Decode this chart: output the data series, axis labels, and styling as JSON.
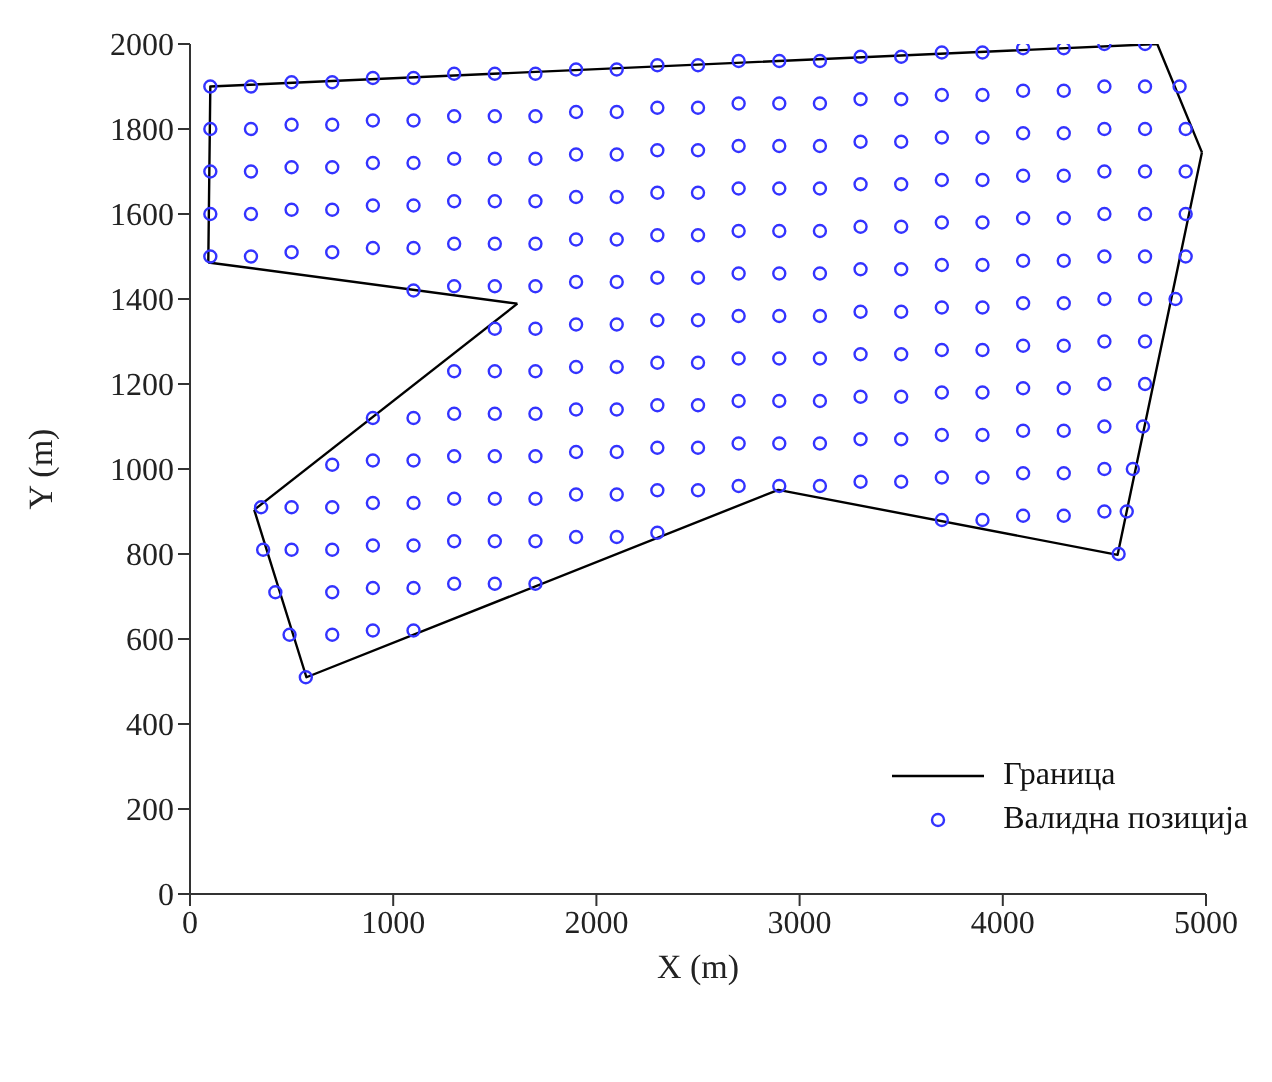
{
  "chart_data": {
    "type": "scatter",
    "xlabel": "X (m)",
    "ylabel": "Y (m)",
    "xlim": [
      0,
      5000
    ],
    "xticks": [
      0,
      1000,
      2000,
      3000,
      4000,
      5000
    ],
    "ylim": [
      0,
      2000
    ],
    "yticks": [
      0,
      200,
      400,
      600,
      800,
      1000,
      1200,
      1400,
      1600,
      1800,
      2000
    ],
    "grid": false,
    "legend": "bottom right",
    "series": [
      {
        "name": "Граница",
        "type": "line",
        "color": "#000000",
        "line_style": "solid",
        "marker": "none",
        "x": [
          90,
          100,
          4760,
          4980
        ],
        "values": [
          1486,
          1900,
          2000,
          1745
        ]
      },
      {
        "type": "line",
        "color": "#000000",
        "line_style": "solid",
        "marker": "none",
        "x": [
          4980,
          4565,
          2895,
          573,
          316
        ],
        "values": [
          1745,
          798,
          951,
          510,
          904
        ]
      },
      {
        "type": "line",
        "color": "#000000",
        "line_style": "solid",
        "marker": "none",
        "x": [
          316,
          1611
        ],
        "values": [
          904,
          1389
        ]
      },
      {
        "type": "line",
        "color": "#000000",
        "line_style": "solid",
        "marker": "none",
        "x": [
          1611,
          90
        ],
        "values": [
          1389,
          1486
        ]
      },
      {
        "name": "Валидна позиција",
        "color": "#3333ff",
        "marker": "circle",
        "x": [
          100,
          300,
          500,
          700,
          900,
          1100,
          1300,
          1500,
          1700,
          1900,
          2100,
          2300,
          2500,
          2700,
          2900,
          3100,
          3300,
          3500,
          3700,
          3900,
          4100,
          4300,
          4500,
          4700,
          100,
          300,
          500,
          700,
          900,
          1100,
          1300,
          1500,
          1700,
          1900,
          2100,
          2300,
          2500,
          2700,
          2900,
          3100,
          3300,
          3500,
          3700,
          3900,
          4100,
          4300,
          4500,
          4700,
          4870,
          100,
          300,
          500,
          700,
          900,
          1100,
          1300,
          1500,
          1700,
          1900,
          2100,
          2300,
          2500,
          2700,
          2900,
          3100,
          3300,
          3500,
          3700,
          3900,
          4100,
          4300,
          4500,
          4700,
          4900,
          100,
          300,
          500,
          700,
          900,
          1100,
          1300,
          1500,
          1700,
          1900,
          2100,
          2300,
          2500,
          2700,
          2900,
          3100,
          3300,
          3500,
          3700,
          3900,
          4100,
          4300,
          4500,
          4700,
          4900,
          100,
          300,
          500,
          700,
          900,
          1100,
          1300,
          1500,
          1700,
          1900,
          2100,
          2300,
          2500,
          2700,
          2900,
          3100,
          3300,
          3500,
          3700,
          3900,
          4100,
          4300,
          4500,
          4700,
          4900,
          1100,
          1300,
          1500,
          1700,
          1900,
          2100,
          2300,
          2500,
          2700,
          2900,
          3100,
          3300,
          3500,
          3700,
          3900,
          4100,
          4300,
          4500,
          4700,
          4900,
          1500,
          1700,
          1900,
          2100,
          2300,
          2500,
          2700,
          2900,
          3100,
          3300,
          3500,
          3700,
          3900,
          4100,
          4300,
          4500,
          4700,
          4850,
          1300,
          1500,
          1700,
          1900,
          2100,
          2300,
          2500,
          2700,
          2900,
          3100,
          3300,
          3500,
          3700,
          3900,
          4100,
          4300,
          4500,
          4700,
          900,
          1100,
          1300,
          1500,
          1700,
          1900,
          2100,
          2300,
          2500,
          2700,
          2900,
          3100,
          3300,
          3500,
          3700,
          3900,
          4100,
          4300,
          4500,
          4700,
          700,
          900,
          1100,
          1300,
          1500,
          1700,
          1900,
          2100,
          2300,
          2500,
          2700,
          2900,
          3100,
          3300,
          3500,
          3700,
          3900,
          4100,
          4300,
          4500,
          4690,
          350,
          500,
          700,
          900,
          1100,
          1300,
          1500,
          1700,
          1900,
          2100,
          2300,
          2500,
          2700,
          2900,
          3100,
          3300,
          3500,
          3700,
          3900,
          4100,
          4300,
          4500,
          4640,
          360,
          500,
          700,
          900,
          1100,
          1300,
          1500,
          1700,
          1900,
          2100,
          2300,
          3700,
          3900,
          4100,
          4300,
          4500,
          4610,
          420,
          700,
          900,
          1100,
          1300,
          1500,
          1700,
          490,
          700,
          900,
          1100,
          570,
          4570
        ],
        "values": [
          1900,
          1900,
          1910,
          1910,
          1920,
          1920,
          1930,
          1930,
          1930,
          1940,
          1940,
          1950,
          1950,
          1960,
          1960,
          1960,
          1970,
          1970,
          1980,
          1980,
          1990,
          1990,
          2000,
          2000,
          1800,
          1800,
          1810,
          1810,
          1820,
          1820,
          1830,
          1830,
          1830,
          1840,
          1840,
          1850,
          1850,
          1860,
          1860,
          1860,
          1870,
          1870,
          1880,
          1880,
          1890,
          1890,
          1900,
          1900,
          1900,
          1700,
          1700,
          1710,
          1710,
          1720,
          1720,
          1730,
          1730,
          1730,
          1740,
          1740,
          1750,
          1750,
          1760,
          1760,
          1760,
          1770,
          1770,
          1780,
          1780,
          1790,
          1790,
          1800,
          1800,
          1800,
          1600,
          1600,
          1610,
          1610,
          1620,
          1620,
          1630,
          1630,
          1630,
          1640,
          1640,
          1650,
          1650,
          1660,
          1660,
          1660,
          1670,
          1670,
          1680,
          1680,
          1690,
          1690,
          1700,
          1700,
          1700,
          1500,
          1500,
          1510,
          1510,
          1520,
          1520,
          1530,
          1530,
          1530,
          1540,
          1540,
          1550,
          1550,
          1560,
          1560,
          1560,
          1570,
          1570,
          1580,
          1580,
          1590,
          1590,
          1600,
          1600,
          1600,
          1420,
          1430,
          1430,
          1430,
          1440,
          1440,
          1450,
          1450,
          1460,
          1460,
          1460,
          1470,
          1470,
          1480,
          1480,
          1490,
          1490,
          1500,
          1500,
          1500,
          1330,
          1330,
          1340,
          1340,
          1350,
          1350,
          1360,
          1360,
          1360,
          1370,
          1370,
          1380,
          1380,
          1390,
          1390,
          1400,
          1400,
          1400,
          1230,
          1230,
          1230,
          1240,
          1240,
          1250,
          1250,
          1260,
          1260,
          1260,
          1270,
          1270,
          1280,
          1280,
          1290,
          1290,
          1300,
          1300,
          1120,
          1120,
          1130,
          1130,
          1130,
          1140,
          1140,
          1150,
          1150,
          1160,
          1160,
          1160,
          1170,
          1170,
          1180,
          1180,
          1190,
          1190,
          1200,
          1200,
          1010,
          1020,
          1020,
          1030,
          1030,
          1030,
          1040,
          1040,
          1050,
          1050,
          1060,
          1060,
          1060,
          1070,
          1070,
          1080,
          1080,
          1090,
          1090,
          1100,
          1100,
          910,
          910,
          910,
          920,
          920,
          930,
          930,
          930,
          940,
          940,
          950,
          950,
          960,
          960,
          960,
          970,
          970,
          980,
          980,
          990,
          990,
          1000,
          1000,
          810,
          810,
          810,
          820,
          820,
          830,
          830,
          830,
          840,
          840,
          850,
          880,
          880,
          890,
          890,
          900,
          900,
          710,
          710,
          720,
          720,
          730,
          730,
          730,
          610,
          610,
          620,
          620,
          510,
          800
        ]
      }
    ]
  }
}
